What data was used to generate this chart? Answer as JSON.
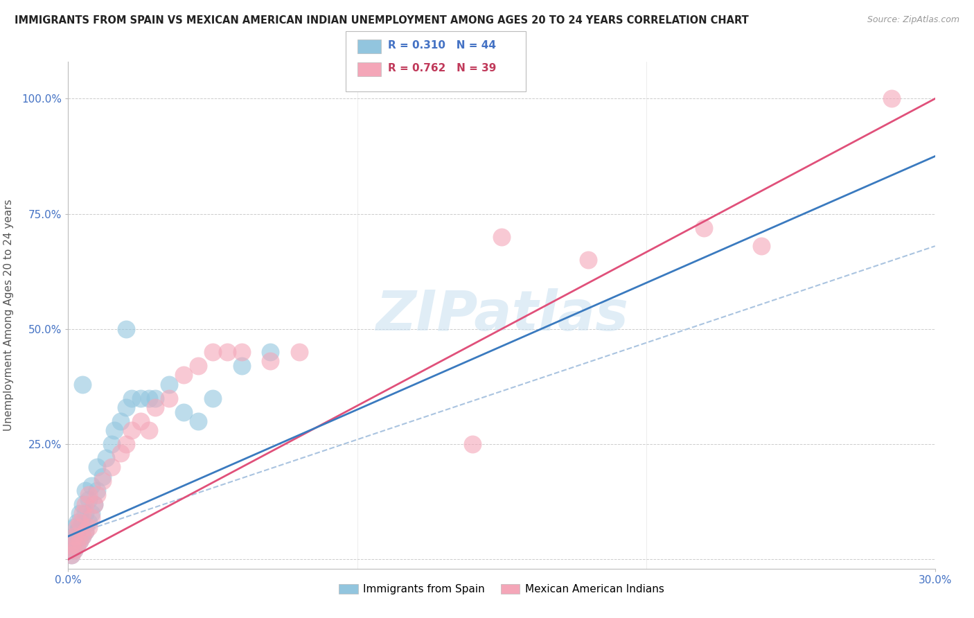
{
  "title": "IMMIGRANTS FROM SPAIN VS MEXICAN AMERICAN INDIAN UNEMPLOYMENT AMONG AGES 20 TO 24 YEARS CORRELATION CHART",
  "source": "Source: ZipAtlas.com",
  "ylabel": "Unemployment Among Ages 20 to 24 years",
  "xmin": 0.0,
  "xmax": 0.3,
  "ymin": -0.02,
  "ymax": 1.08,
  "blue_R": 0.31,
  "blue_N": 44,
  "pink_R": 0.762,
  "pink_N": 39,
  "blue_color": "#92c5de",
  "pink_color": "#f4a6b8",
  "blue_line_color": "#3a7abf",
  "pink_line_color": "#e0507a",
  "ref_line_color": "#aac4e0",
  "watermark_color": "#c8dff0",
  "background_color": "#ffffff",
  "grid_color": "#cccccc",
  "tick_color": "#4472c4",
  "title_color": "#222222",
  "source_color": "#999999",
  "ylabel_color": "#555555",
  "legend_text_blue_color": "#4472c4",
  "legend_text_pink_color": "#c0395a",
  "blue_scatter_x": [
    0.001,
    0.001,
    0.001,
    0.002,
    0.002,
    0.002,
    0.002,
    0.003,
    0.003,
    0.003,
    0.004,
    0.004,
    0.004,
    0.005,
    0.005,
    0.005,
    0.006,
    0.006,
    0.006,
    0.007,
    0.007,
    0.008,
    0.008,
    0.009,
    0.01,
    0.01,
    0.012,
    0.013,
    0.015,
    0.016,
    0.018,
    0.02,
    0.022,
    0.025,
    0.028,
    0.03,
    0.035,
    0.04,
    0.045,
    0.05,
    0.06,
    0.07,
    0.02,
    0.005
  ],
  "blue_scatter_y": [
    0.01,
    0.02,
    0.03,
    0.02,
    0.04,
    0.05,
    0.07,
    0.03,
    0.06,
    0.08,
    0.04,
    0.07,
    0.1,
    0.05,
    0.08,
    0.12,
    0.06,
    0.1,
    0.15,
    0.08,
    0.13,
    0.1,
    0.16,
    0.12,
    0.15,
    0.2,
    0.18,
    0.22,
    0.25,
    0.28,
    0.3,
    0.33,
    0.35,
    0.35,
    0.35,
    0.35,
    0.38,
    0.32,
    0.3,
    0.35,
    0.42,
    0.45,
    0.5,
    0.38
  ],
  "pink_scatter_x": [
    0.001,
    0.001,
    0.002,
    0.002,
    0.003,
    0.003,
    0.004,
    0.004,
    0.005,
    0.005,
    0.006,
    0.006,
    0.007,
    0.007,
    0.008,
    0.009,
    0.01,
    0.012,
    0.015,
    0.018,
    0.02,
    0.022,
    0.025,
    0.028,
    0.03,
    0.035,
    0.04,
    0.045,
    0.05,
    0.055,
    0.06,
    0.07,
    0.08,
    0.14,
    0.15,
    0.18,
    0.22,
    0.24,
    0.285
  ],
  "pink_scatter_y": [
    0.01,
    0.03,
    0.02,
    0.05,
    0.03,
    0.07,
    0.04,
    0.08,
    0.05,
    0.1,
    0.06,
    0.12,
    0.07,
    0.14,
    0.09,
    0.12,
    0.14,
    0.17,
    0.2,
    0.23,
    0.25,
    0.28,
    0.3,
    0.28,
    0.33,
    0.35,
    0.4,
    0.42,
    0.45,
    0.45,
    0.45,
    0.43,
    0.45,
    0.25,
    0.7,
    0.65,
    0.72,
    0.68,
    1.0
  ],
  "watermark": "ZIPatlas"
}
